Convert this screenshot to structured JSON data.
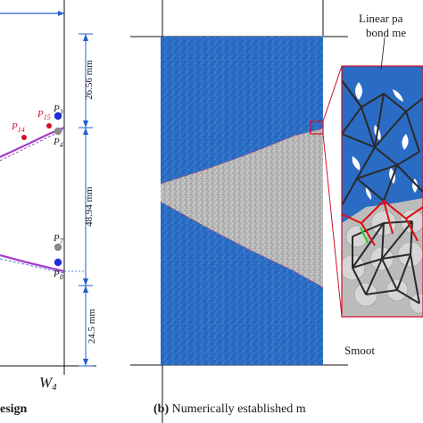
{
  "left_panel": {
    "caption": "esign",
    "wall_label": "W",
    "wall_sub": "4",
    "points": [
      {
        "name": "P",
        "sub": "3",
        "color": "#1f2ed8"
      },
      {
        "name": "P",
        "sub": "15",
        "color": "#d0102a"
      },
      {
        "name": "P",
        "sub": "14",
        "color": "#d0102a"
      },
      {
        "name": "P",
        "sub": "4",
        "color": "#8a8a8a"
      },
      {
        "name": "P",
        "sub": "7",
        "color": "#8a8a8a"
      },
      {
        "name": "P",
        "sub": "8",
        "color": "#1f2ed8"
      }
    ],
    "dimensions": [
      "26.56 mm",
      "48.94 mm",
      "24.5 mm"
    ]
  },
  "right_panel": {
    "caption_bold": "(b)",
    "caption_text": " Numerically established m",
    "zoom_label_line1": "Linear pa",
    "zoom_label_line2": "bond me",
    "smooth_label": "Smoot"
  },
  "colors": {
    "specimen_blue": "#2a6cc4",
    "crack_gray": "#b8b8b8",
    "crack_trace": "#a43ec8",
    "bond_red": "#e01010",
    "bond_green": "#3ec83e",
    "dim_blue": "#2060d0"
  }
}
